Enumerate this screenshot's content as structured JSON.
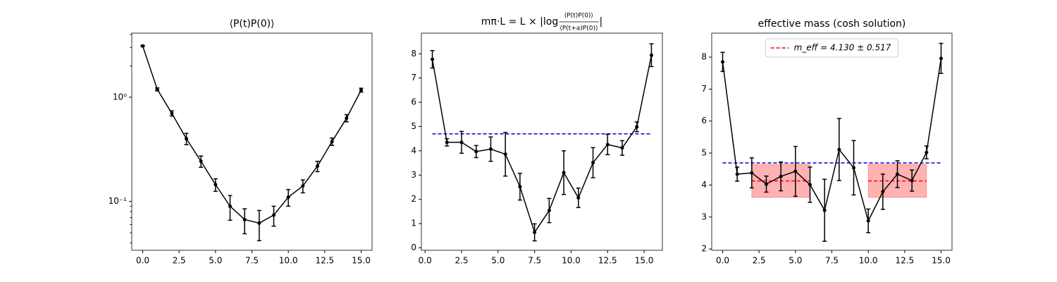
{
  "chart_data": [
    {
      "type": "line",
      "title": "⟨P(t)P(0)⟩",
      "log_y": true,
      "x": [
        0,
        1,
        2,
        3,
        4,
        5,
        6,
        7,
        8,
        9,
        10,
        11,
        12,
        13,
        14,
        15
      ],
      "series": [
        {
          "color": "#000000",
          "values": [
            3.1,
            1.19,
            0.7,
            0.4,
            0.243,
            0.145,
            0.09,
            0.067,
            0.062,
            0.074,
            0.11,
            0.141,
            0.218,
            0.375,
            0.63,
            1.17
          ],
          "errors": [
            0.05,
            0.04,
            0.04,
            0.05,
            0.03,
            0.02,
            0.024,
            0.018,
            0.02,
            0.016,
            0.02,
            0.02,
            0.025,
            0.03,
            0.05,
            0.05
          ]
        }
      ],
      "xlim": [
        -0.75,
        15.75
      ],
      "ylim": [
        0.034,
        4.12
      ],
      "xticks": [
        {
          "value": 0,
          "label": "0.0"
        },
        {
          "value": 2.5,
          "label": "2.5"
        },
        {
          "value": 5,
          "label": "5.0"
        },
        {
          "value": 7.5,
          "label": "7.5"
        },
        {
          "value": 10,
          "label": "10.0"
        },
        {
          "value": 12.5,
          "label": "12.5"
        },
        {
          "value": 15,
          "label": "15.0"
        }
      ],
      "yticks": [
        {
          "value": 0.1,
          "label": "10⁻¹"
        },
        {
          "value": 1,
          "label": "10⁰"
        }
      ],
      "yminorticks": [
        0.04,
        0.05,
        0.06,
        0.07,
        0.08,
        0.09,
        2,
        3,
        4
      ]
    },
    {
      "type": "line",
      "title": {
        "prefix": "mπ·L = L × |log",
        "numerator": "⟨P(t)P(0)⟩",
        "denominator": "⟨P(t+a)P(0)⟩",
        "suffix": "|"
      },
      "x": [
        0.5,
        1.5,
        2.5,
        3.5,
        4.5,
        5.5,
        6.5,
        7.5,
        8.5,
        9.5,
        10.5,
        11.5,
        12.5,
        13.5,
        14.5,
        15.5
      ],
      "series": [
        {
          "color": "#000000",
          "values": [
            7.77,
            4.35,
            4.35,
            3.97,
            4.07,
            3.86,
            2.52,
            0.64,
            1.54,
            3.1,
            2.06,
            3.51,
            4.26,
            4.12,
            4.99,
            7.94
          ],
          "errors": [
            0.36,
            0.15,
            0.45,
            0.25,
            0.5,
            0.9,
            0.55,
            0.35,
            0.5,
            0.9,
            0.4,
            0.62,
            0.42,
            0.3,
            0.2,
            0.47
          ]
        }
      ],
      "reference_line": {
        "value": 4.7,
        "x_range": [
          0.5,
          15.5
        ],
        "color": "#0000cc"
      },
      "xlim": [
        -0.25,
        16.25
      ],
      "ylim": [
        -0.1,
        8.85
      ],
      "xticks": [
        {
          "value": 0,
          "label": "0.0"
        },
        {
          "value": 2.5,
          "label": "2.5"
        },
        {
          "value": 5,
          "label": "5.0"
        },
        {
          "value": 7.5,
          "label": "7.5"
        },
        {
          "value": 10,
          "label": "10.0"
        },
        {
          "value": 12.5,
          "label": "12.5"
        },
        {
          "value": 15,
          "label": "15.0"
        }
      ],
      "yticks": [
        0,
        1,
        2,
        3,
        4,
        5,
        6,
        7,
        8
      ]
    },
    {
      "type": "line",
      "title": "effective mass (cosh solution)",
      "x": [
        0,
        1,
        2,
        3,
        4,
        5,
        6,
        7,
        8,
        9,
        10,
        11,
        12,
        13,
        14,
        15
      ],
      "series": [
        {
          "color": "#000000",
          "values": [
            7.85,
            4.34,
            4.38,
            4.03,
            4.27,
            4.43,
            4.01,
            3.21,
            5.11,
            4.54,
            2.88,
            3.79,
            4.34,
            4.14,
            5.02,
            7.96
          ],
          "errors": [
            0.3,
            0.22,
            0.47,
            0.25,
            0.45,
            0.78,
            0.55,
            0.97,
            0.97,
            0.85,
            0.37,
            0.55,
            0.42,
            0.33,
            0.2,
            0.47
          ]
        }
      ],
      "reference_line": {
        "value": 4.69,
        "x_range": [
          0,
          15
        ],
        "color": "#0000cc"
      },
      "fit": {
        "value": 4.13,
        "error": 0.517,
        "ranges": [
          [
            2,
            6
          ],
          [
            10,
            14
          ]
        ],
        "color": "#ff0000",
        "label": "m_eff = 4.130 ± 0.517"
      },
      "xlim": [
        -0.75,
        15.75
      ],
      "ylim": [
        1.96,
        8.75
      ],
      "xticks": [
        {
          "value": 0,
          "label": "0.0"
        },
        {
          "value": 2.5,
          "label": "2.5"
        },
        {
          "value": 5,
          "label": "5.0"
        },
        {
          "value": 7.5,
          "label": "7.5"
        },
        {
          "value": 10,
          "label": "10.0"
        },
        {
          "value": 12.5,
          "label": "12.5"
        },
        {
          "value": 15,
          "label": "15.0"
        }
      ],
      "yticks": [
        2,
        3,
        4,
        5,
        6,
        7,
        8
      ]
    }
  ]
}
